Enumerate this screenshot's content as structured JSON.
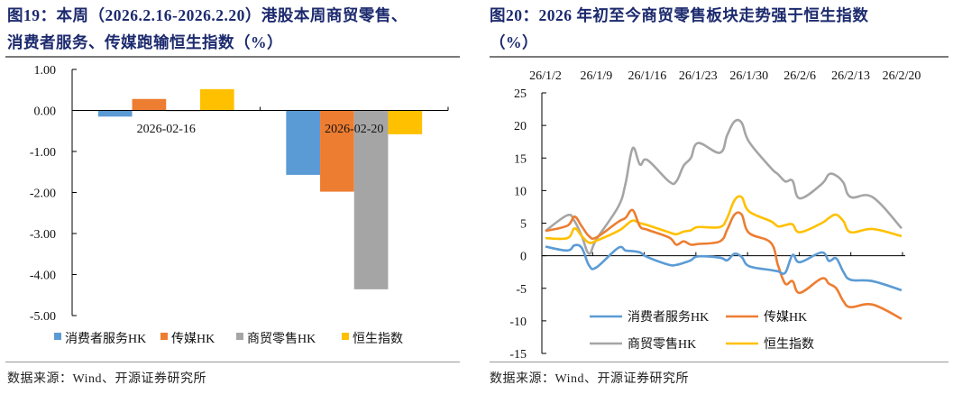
{
  "left": {
    "title_line1": "图19：本周（2026.2.16-2026.2.20）港股本周商贸零售、",
    "title_line2": "消费者服务、传媒跑输恒生指数（%）",
    "source": "数据来源：Wind、开源证券研究所"
  },
  "right": {
    "title_line1": "图20：2026 年初至今商贸零售板块走势强于恒生指数",
    "title_line2": "（%）",
    "source": "数据来源：Wind、开源证券研究所"
  },
  "chart_data": [
    {
      "type": "bar",
      "categories": [
        "2026-02-16",
        "2026-02-20"
      ],
      "series": [
        {
          "name": "消费者服务HK",
          "color": "#5b9bd5",
          "values": [
            -0.15,
            -1.57
          ]
        },
        {
          "name": "传媒HK",
          "color": "#ed7d31",
          "values": [
            0.28,
            -1.98
          ]
        },
        {
          "name": "商贸零售HK",
          "color": "#a5a5a5",
          "values": [
            -0.02,
            -4.36
          ]
        },
        {
          "name": "恒生指数",
          "color": "#ffc000",
          "values": [
            0.52,
            -0.58
          ]
        }
      ],
      "ylim": [
        -5,
        1
      ],
      "yticks": [
        "1.00",
        "0.00",
        "-1.00",
        "-2.00",
        "-3.00",
        "-4.00",
        "-5.00"
      ],
      "grid": false,
      "legend": "bottom"
    },
    {
      "type": "line",
      "x": [
        "2026-01-02",
        "2026-01-05",
        "2026-01-06",
        "2026-01-07",
        "2026-01-08",
        "2026-01-09",
        "2026-01-12",
        "2026-01-13",
        "2026-01-14",
        "2026-01-15",
        "2026-01-16",
        "2026-01-19",
        "2026-01-20",
        "2026-01-21",
        "2026-01-22",
        "2026-01-23",
        "2026-01-26",
        "2026-01-27",
        "2026-01-28",
        "2026-01-29",
        "2026-01-30",
        "2026-02-02",
        "2026-02-03",
        "2026-02-04",
        "2026-02-05",
        "2026-02-06",
        "2026-02-09",
        "2026-02-10",
        "2026-02-11",
        "2026-02-12",
        "2026-02-13",
        "2026-02-16",
        "2026-02-20"
      ],
      "series": [
        {
          "name": "消费者服务HK",
          "color": "#5b9bd5",
          "values": [
            1.4,
            0.8,
            1.6,
            1.2,
            -1.5,
            -1.8,
            1.2,
            0.8,
            0.7,
            0.5,
            -0.2,
            -1.4,
            -1.4,
            -1.1,
            -0.7,
            -0.1,
            -0.3,
            -0.7,
            0.3,
            -0.2,
            -1.6,
            -2.2,
            -2.4,
            -2.6,
            0.1,
            -1.0,
            0.5,
            -0.8,
            -0.4,
            -2.5,
            -3.7,
            -3.9,
            -5.3
          ]
        },
        {
          "name": "传媒HK",
          "color": "#ed7d31",
          "values": [
            3.8,
            4.6,
            6.0,
            4.5,
            3.0,
            2.8,
            5.2,
            5.8,
            7.0,
            4.5,
            4.0,
            2.8,
            1.7,
            2.2,
            1.7,
            1.8,
            2.2,
            4.0,
            6.3,
            6.3,
            3.5,
            2.0,
            -1.5,
            -4.3,
            -3.9,
            -5.7,
            -3.5,
            -4.3,
            -5.0,
            -7.0,
            -7.9,
            -7.5,
            -9.7
          ]
        },
        {
          "name": "商贸零售HK",
          "color": "#a5a5a5",
          "values": [
            3.8,
            6.2,
            5.3,
            3.0,
            0.3,
            2.5,
            7.5,
            11.0,
            16.5,
            14.0,
            14.7,
            11.4,
            11.4,
            13.8,
            15.0,
            17.3,
            15.8,
            18.5,
            20.6,
            20.4,
            17.5,
            13.5,
            12.5,
            11.4,
            11.5,
            8.8,
            11.0,
            12.5,
            12.3,
            11.2,
            9.0,
            9.0,
            4.2
          ]
        },
        {
          "name": "恒生指数",
          "color": "#ffc000",
          "values": [
            2.7,
            2.7,
            4.2,
            3.0,
            2.0,
            2.3,
            3.8,
            4.6,
            5.4,
            5.0,
            4.7,
            3.6,
            3.3,
            3.7,
            3.9,
            4.4,
            4.4,
            5.8,
            8.5,
            9.0,
            6.8,
            5.3,
            4.5,
            4.7,
            4.8,
            3.6,
            5.0,
            5.8,
            6.3,
            5.3,
            3.6,
            4.1,
            3.0
          ]
        }
      ],
      "xticks": [
        "26/1/2",
        "26/1/9",
        "26/1/16",
        "26/1/23",
        "26/1/30",
        "26/2/6",
        "26/2/13",
        "26/2/20"
      ],
      "xaxis_position": "top",
      "ylim": [
        -15,
        25
      ],
      "yticks": [
        "25",
        "20",
        "15",
        "10",
        "5",
        "0",
        "-5",
        "-10",
        "-15"
      ],
      "grid": false,
      "legend": "bottom-inside"
    }
  ]
}
